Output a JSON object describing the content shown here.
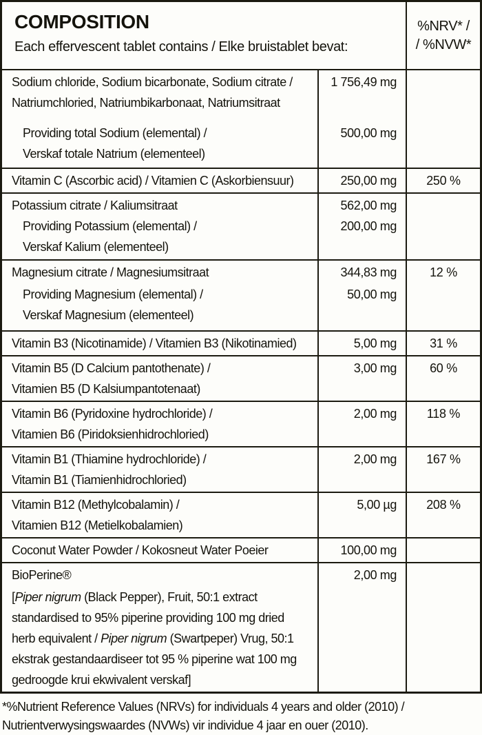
{
  "header": {
    "title": "COMPOSITION",
    "subtitle": "Each effervescent tablet contains / Elke bruistablet bevat:",
    "nrv_label": "%NRV* /\n/ %NVW*"
  },
  "table": {
    "rows": [
      {
        "nrv": "",
        "entries": [
          {
            "name": "Sodium chloride, Sodium bicarbonate, Sodium citrate /\nNatriumchloried, Natriumbikarbonaat, Natriumsitraat",
            "amount": "1 756,49 mg",
            "indent": false
          },
          {
            "name": "Providing total Sodium (elemental) /\nVerskaf totale Natrium (elementeel)",
            "amount": "500,00 mg",
            "indent": true
          }
        ]
      },
      {
        "nrv": "250 %",
        "entries": [
          {
            "name": "Vitamin C (Ascorbic acid) / Vitamien C (Askorbiensuur)",
            "amount": "250,00 mg",
            "indent": false
          }
        ]
      },
      {
        "nrv": "",
        "entries": [
          {
            "name": "Potassium citrate / Kaliumsitraat",
            "amount": "562,00 mg",
            "indent": false
          },
          {
            "name": "Providing Potassium (elemental) /\nVerskaf Kalium (elementeel)",
            "amount": "200,00 mg",
            "indent": true
          }
        ]
      },
      {
        "nrv": "12 %",
        "entries": [
          {
            "name": "Magnesium citrate / Magnesiumsitraat",
            "amount": "344,83 mg",
            "indent": false
          },
          {
            "name": "Providing Magnesium (elemental) /\nVerskaf Magnesium (elementeel)",
            "amount": "50,00 mg",
            "indent": true
          }
        ]
      },
      {
        "nrv": "31 %",
        "entries": [
          {
            "name": "Vitamin B3 (Nicotinamide) / Vitamien B3 (Nikotinamied)",
            "amount": "5,00 mg",
            "indent": false
          }
        ]
      },
      {
        "nrv": "60 %",
        "entries": [
          {
            "name": "Vitamin B5 (D Calcium pantothenate) /\nVitamien B5 (D Kalsiumpantotenaat)",
            "amount": "3,00 mg",
            "indent": false
          }
        ]
      },
      {
        "nrv": "118 %",
        "entries": [
          {
            "name": "Vitamin B6 (Pyridoxine hydrochloride) /\nVitamien B6 (Piridoksienhidrochloried)",
            "amount": "2,00 mg",
            "indent": false
          }
        ]
      },
      {
        "nrv": "167 %",
        "entries": [
          {
            "name": "Vitamin B1 (Thiamine hydrochloride) /\nVitamin B1 (Tiamienhidrochloried)",
            "amount": "2,00 mg",
            "indent": false
          }
        ]
      },
      {
        "nrv": "208 %",
        "entries": [
          {
            "name": "Vitamin B12 (Methylcobalamin) /\nVitamien B12 (Metielkobalamien)",
            "amount": "5,00 µg",
            "indent": false
          }
        ]
      },
      {
        "nrv": "",
        "entries": [
          {
            "name": "Coconut Water Powder / Kokosneut Water Poeier",
            "amount": "100,00 mg",
            "indent": false
          }
        ]
      },
      {
        "nrv": "",
        "entries": [
          {
            "name": "BioPerine®",
            "amount": "2,00 mg",
            "indent": false
          }
        ],
        "detail_segments": [
          {
            "text": "[",
            "italic": false
          },
          {
            "text": "Piper nigrum",
            "italic": true
          },
          {
            "text": " (Black Pepper), Fruit, 50:1 extract\nstandardised to 95% piperine providing 100 mg dried\nherb equivalent / ",
            "italic": false
          },
          {
            "text": "Piper nigrum",
            "italic": true
          },
          {
            "text": " (Swartpeper) Vrug, 50:1\nekstrak gestandaardiseer tot 95 % piperine wat 100 mg\ngedroogde krui ekwivalent verskaf]",
            "italic": false
          }
        ]
      }
    ]
  },
  "footnote": "*%Nutrient Reference Values (NRVs) for individuals 4 years and older (2010) /\nNutrientverwysingswaardes (NVWs) vir individue 4 jaar en ouer (2010).",
  "colors": {
    "border": "#1b1a10",
    "text": "#14130c",
    "background": "#fdfdfa"
  }
}
